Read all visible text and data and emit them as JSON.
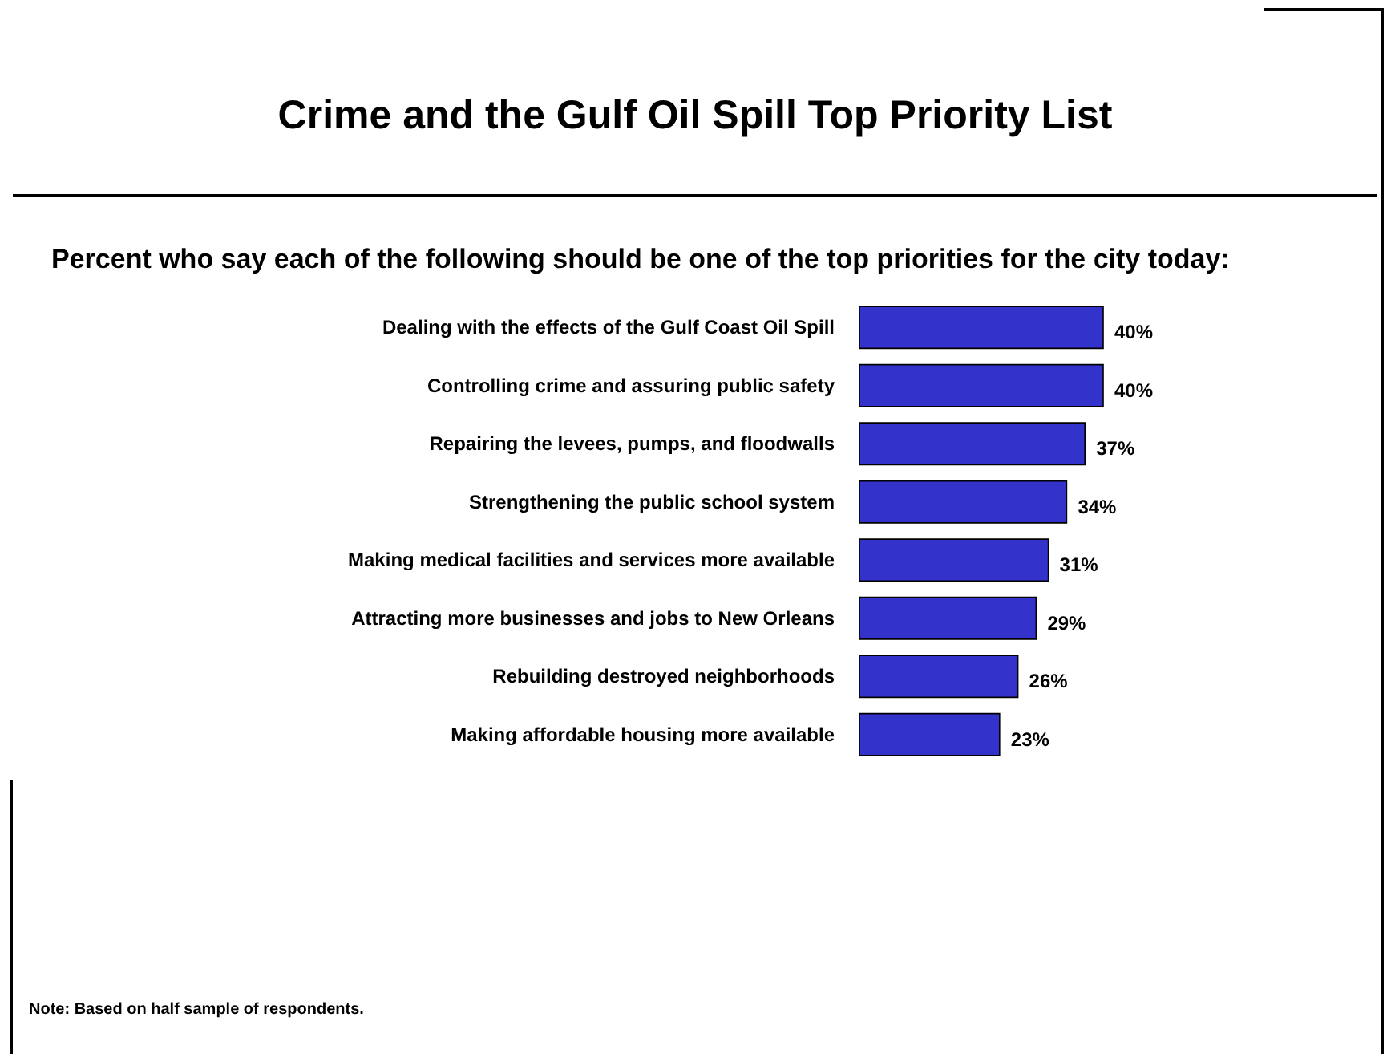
{
  "chart_data": {
    "type": "bar",
    "orientation": "horizontal",
    "title": "Crime and the Gulf Oil Spill Top Priority List",
    "subtitle": "Percent who say each of the following should be one of the top priorities for the city today:",
    "categories": [
      "Dealing with the effects of the Gulf Coast Oil Spill",
      "Controlling crime and assuring public safety",
      "Repairing the levees, pumps, and floodwalls",
      "Strengthening the public school system",
      "Making medical facilities and services more available",
      "Attracting more businesses and jobs to New Orleans",
      "Rebuilding destroyed neighborhoods",
      "Making affordable housing more available"
    ],
    "values": [
      40,
      40,
      37,
      34,
      31,
      29,
      26,
      23
    ],
    "value_labels": [
      "40%",
      "40%",
      "37%",
      "34%",
      "31%",
      "29%",
      "26%",
      "23%"
    ],
    "color": "#3333cc",
    "annotations": [
      "Note: Based on half sample of respondents."
    ]
  }
}
